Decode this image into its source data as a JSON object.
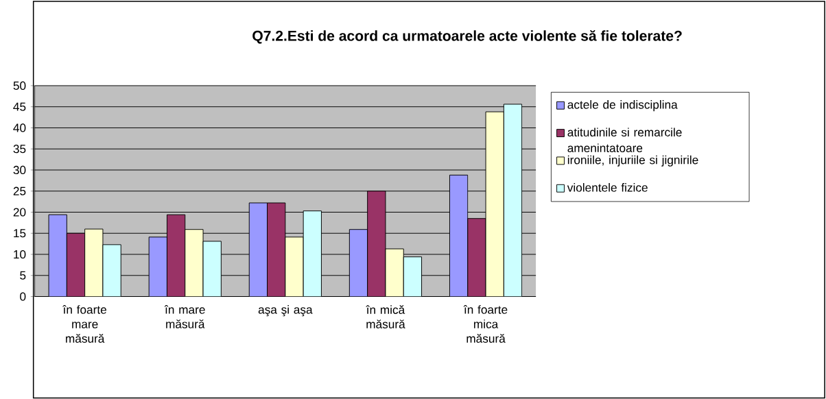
{
  "chart_data": {
    "type": "bar",
    "title": "Q7.2.Esti de acord ca urmatoarele acte violente  să fie tolerate?",
    "categories": [
      "în foarte mare măsură",
      "în mare măsură",
      "aşa şi aşa",
      "în mică măsură",
      "în foarte mica măsură"
    ],
    "series": [
      {
        "name": "actele de indisciplina",
        "color": "#9999ff",
        "values": [
          19.4,
          14.1,
          22.2,
          15.9,
          28.8
        ]
      },
      {
        "name": "atitudinile si remarcile amenintatoare",
        "color": "#993366",
        "values": [
          15,
          19.4,
          22.2,
          25,
          18.5
        ]
      },
      {
        "name": "ironiile, injuriile si jignirile",
        "color": "#ffffcc",
        "values": [
          16,
          15.9,
          14.1,
          11.3,
          43.8
        ]
      },
      {
        "name": "violentele fizice",
        "color": "#ccffff",
        "values": [
          12.3,
          13.1,
          20.3,
          9.4,
          45.6
        ]
      }
    ],
    "ylim": [
      0,
      50
    ],
    "yticks": [
      0,
      5,
      10,
      15,
      20,
      25,
      30,
      35,
      40,
      45,
      50
    ],
    "grid": "y",
    "legend": "right"
  }
}
